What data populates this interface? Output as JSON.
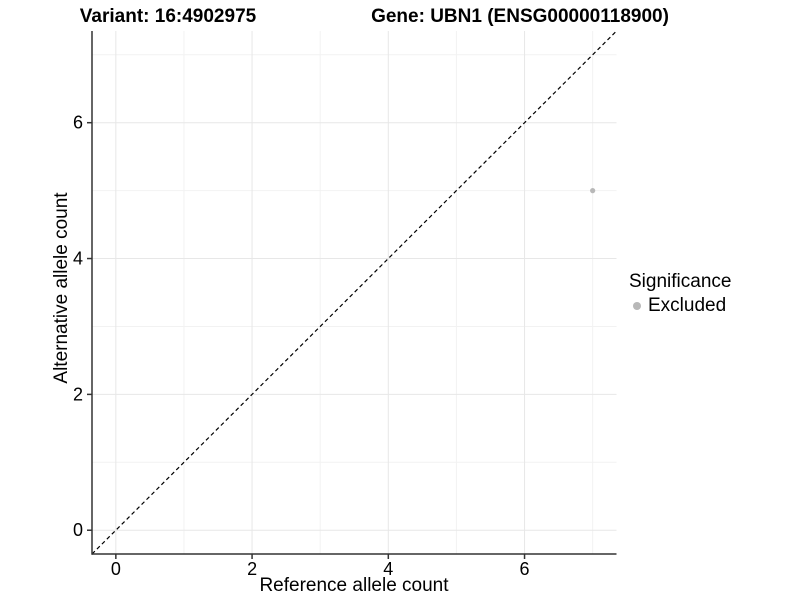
{
  "titles": {
    "variant": "Variant: 16:4902975",
    "gene": "Gene: UBN1 (ENSG00000118900)"
  },
  "chart_data": {
    "type": "scatter",
    "title_left": "Variant: 16:4902975",
    "title_right": "Gene: UBN1 (ENSG00000118900)",
    "xlabel": "Reference allele count",
    "ylabel": "Alternative allele count",
    "xlim": [
      -0.35,
      7.35
    ],
    "ylim": [
      -0.35,
      7.35
    ],
    "xticks": [
      0,
      2,
      4,
      6
    ],
    "yticks": [
      0,
      2,
      4,
      6
    ],
    "minor_xticks": [
      1,
      3,
      5,
      7
    ],
    "minor_yticks": [
      1,
      3,
      5,
      7
    ],
    "grid": true,
    "series": [
      {
        "name": "Excluded",
        "points": [
          {
            "x": 7,
            "y": 5
          }
        ],
        "color": "#b8b8b8"
      }
    ],
    "reference_line": {
      "type": "identity",
      "slope": 1,
      "intercept": 0,
      "style": "dashed",
      "color": "#000000"
    },
    "legend": {
      "title": "Significance",
      "position": "right",
      "entries": [
        {
          "label": "Excluded",
          "color": "#b8b8b8"
        }
      ]
    }
  },
  "colors": {
    "background": "#ffffff",
    "axis_line": "#333333",
    "tick_label": "#000000",
    "grid_major": "#e7e7e7",
    "grid_minor": "#f2f2f2",
    "point": "#b8b8b8",
    "dashed_line": "#000000"
  }
}
